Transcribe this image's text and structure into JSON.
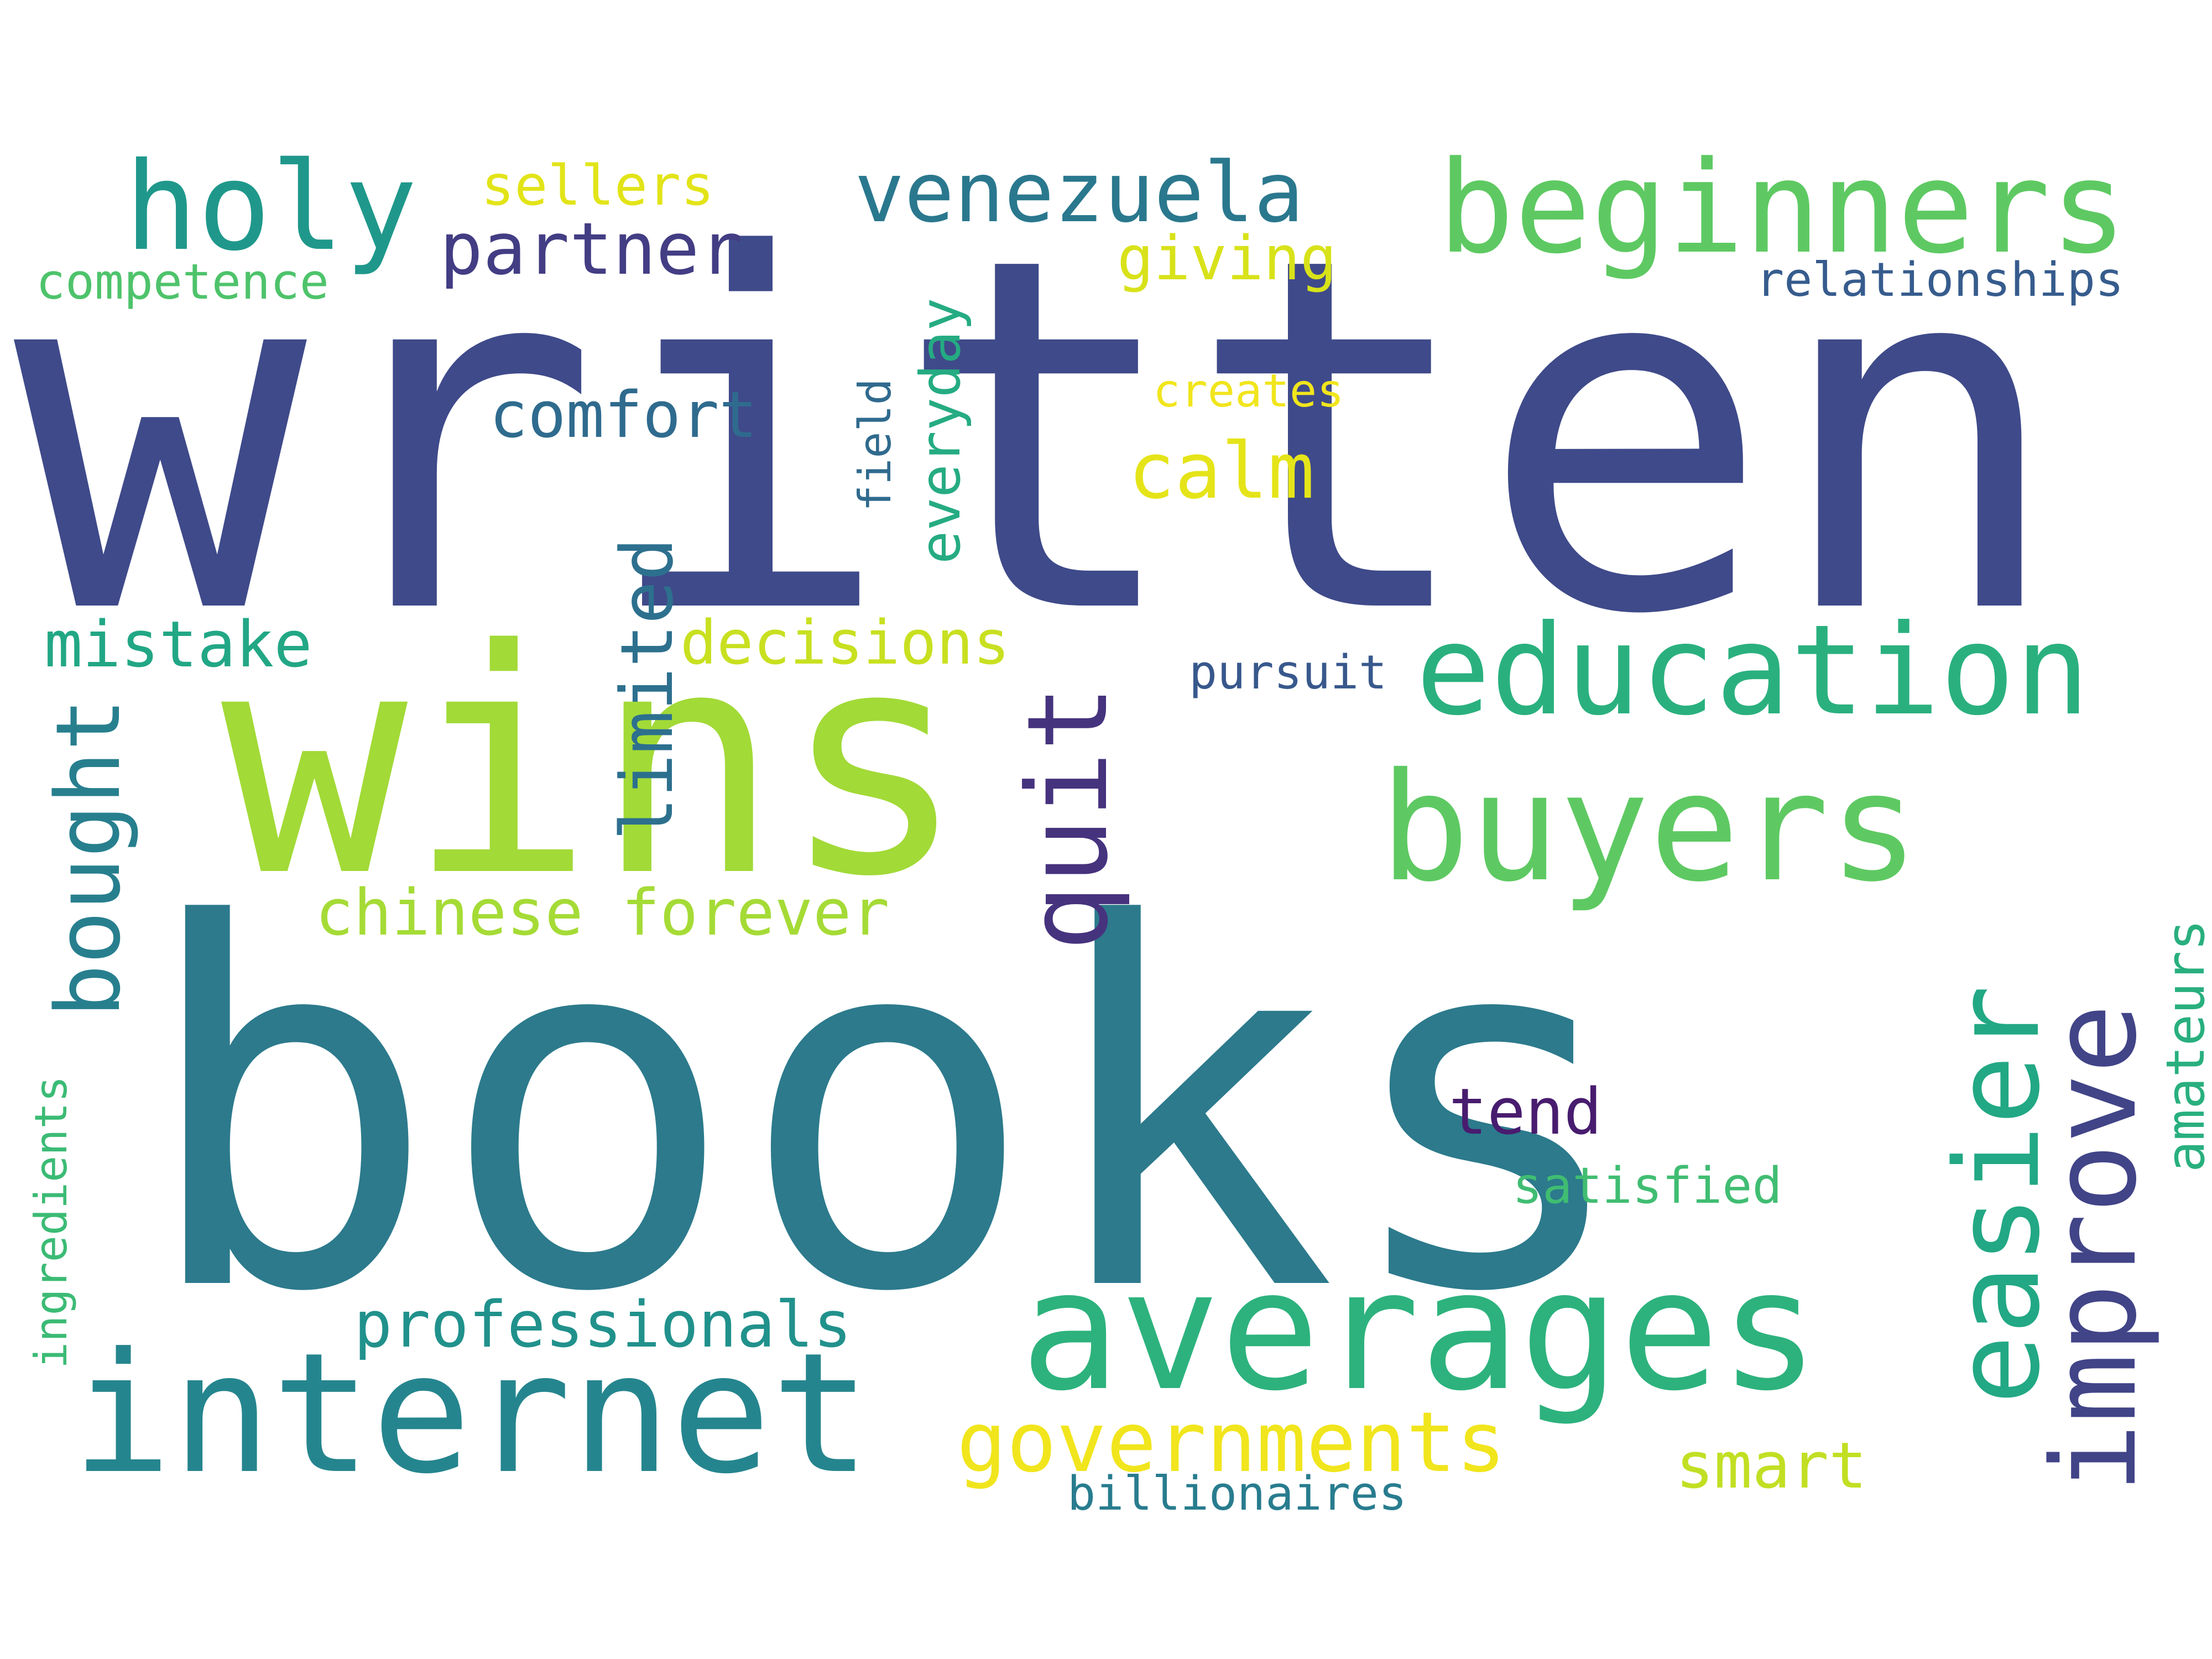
{
  "words": [
    {
      "text": "written",
      "color": "#3f4a8a"
    },
    {
      "text": "books",
      "color": "#2c7a8c"
    },
    {
      "text": "wins",
      "color": "#a2da37"
    },
    {
      "text": "averages",
      "color": "#2db27d"
    },
    {
      "text": "internet",
      "color": "#25858e"
    },
    {
      "text": "buyers",
      "color": "#5ec962"
    },
    {
      "text": "education",
      "color": "#2ab07f"
    },
    {
      "text": "beginners",
      "color": "#5ec962"
    },
    {
      "text": "holy",
      "color": "#1f988b"
    },
    {
      "text": "venezuela",
      "color": "#2a788e"
    },
    {
      "text": "partner",
      "color": "#433d84"
    },
    {
      "text": "sellers",
      "color": "#e2e418"
    },
    {
      "text": "competence",
      "color": "#4ec36b"
    },
    {
      "text": "giving",
      "color": "#d8e219"
    },
    {
      "text": "relationships",
      "color": "#365c8d"
    },
    {
      "text": "comfort",
      "color": "#2f6b8e"
    },
    {
      "text": "creates",
      "color": "#f1e51d"
    },
    {
      "text": "calm",
      "color": "#e5e419"
    },
    {
      "text": "field",
      "color": "#306a8e"
    },
    {
      "text": "everyday",
      "color": "#25ab82"
    },
    {
      "text": "limited",
      "color": "#2d708e"
    },
    {
      "text": "quit",
      "color": "#46337e"
    },
    {
      "text": "mistake",
      "color": "#22a785"
    },
    {
      "text": "decisions",
      "color": "#c8e020"
    },
    {
      "text": "pursuit",
      "color": "#38588c"
    },
    {
      "text": "bought",
      "color": "#277f8e"
    },
    {
      "text": "chinese forever",
      "color": "#a5db36"
    },
    {
      "text": "easier",
      "color": "#22a884"
    },
    {
      "text": "improve",
      "color": "#414487"
    },
    {
      "text": "amateurs",
      "color": "#29af7f"
    },
    {
      "text": "tend",
      "color": "#481c6e"
    },
    {
      "text": "satisfied",
      "color": "#40bd72"
    },
    {
      "text": "ingredients",
      "color": "#3bbb75"
    },
    {
      "text": "professionals",
      "color": "#21918c"
    },
    {
      "text": "governments",
      "color": "#f1e51d"
    },
    {
      "text": "smart",
      "color": "#c2df23"
    },
    {
      "text": "billionaires",
      "color": "#287c8e"
    }
  ]
}
